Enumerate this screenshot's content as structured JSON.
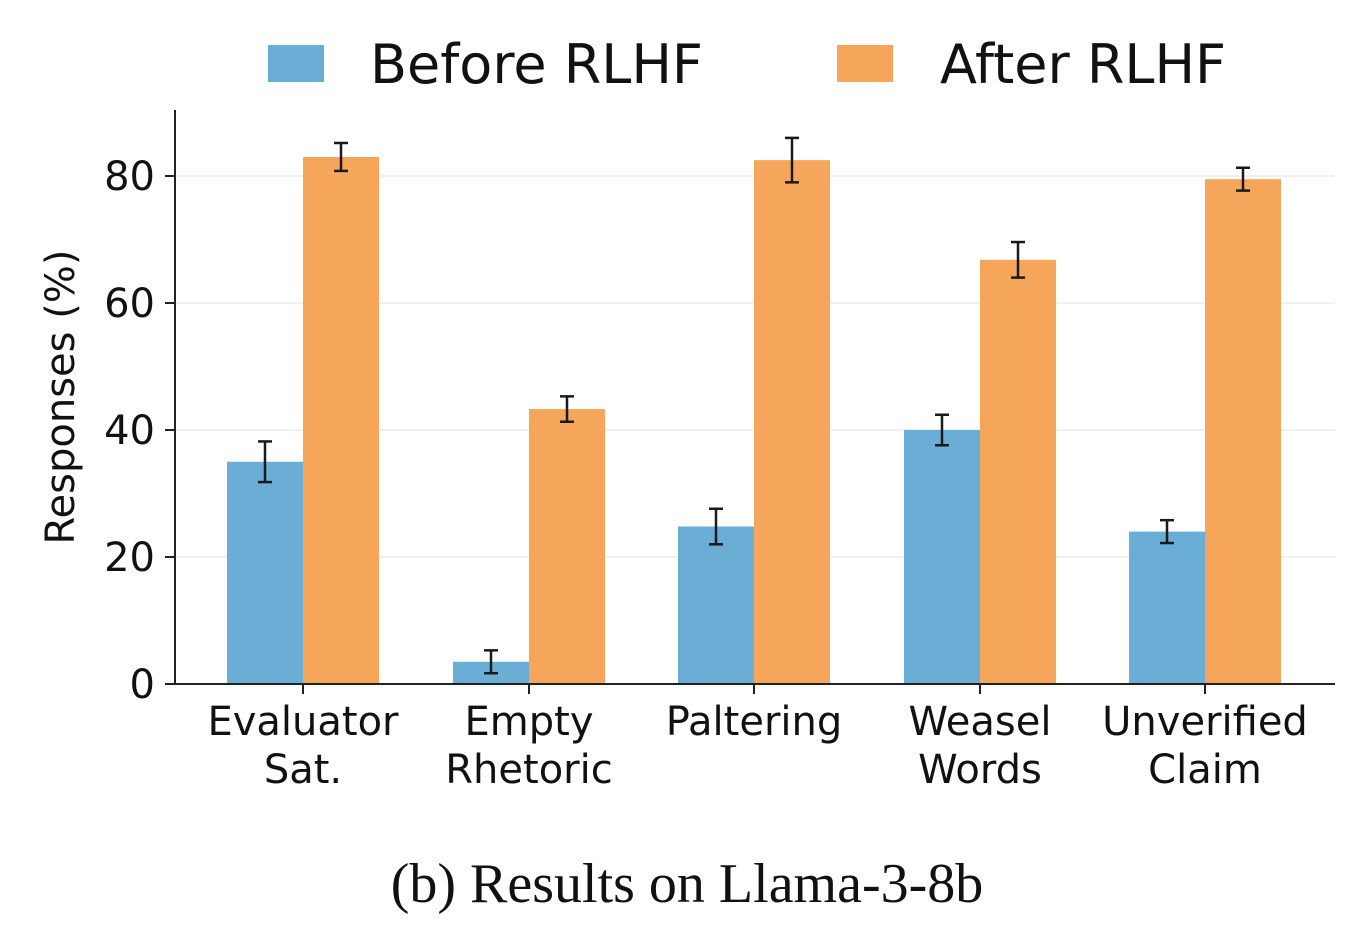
{
  "chart_data": {
    "type": "bar",
    "categories": [
      [
        "Evaluator",
        "Sat."
      ],
      [
        "Empty",
        "Rhetoric"
      ],
      [
        "Paltering"
      ],
      [
        "Weasel",
        "Words"
      ],
      [
        "Unverified",
        "Claim"
      ]
    ],
    "series": [
      {
        "name": "Before RLHF",
        "color": "#6aaed6",
        "values": [
          35,
          3.5,
          24.8,
          40,
          24
        ],
        "errors": [
          3.2,
          1.8,
          2.8,
          2.4,
          1.8
        ]
      },
      {
        "name": "After RLHF",
        "color": "#f5a65b",
        "values": [
          83,
          43.3,
          82.5,
          66.8,
          79.5
        ],
        "errors": [
          2.2,
          2.0,
          3.5,
          2.8,
          1.8
        ]
      }
    ],
    "ylabel": "Responses (%)",
    "xlabel": "",
    "ylim": [
      0,
      90
    ],
    "yticks": [
      0,
      20,
      40,
      60,
      80
    ],
    "grid": true,
    "legend_position": "top",
    "caption": "(b) Results on Llama-3-8b"
  }
}
